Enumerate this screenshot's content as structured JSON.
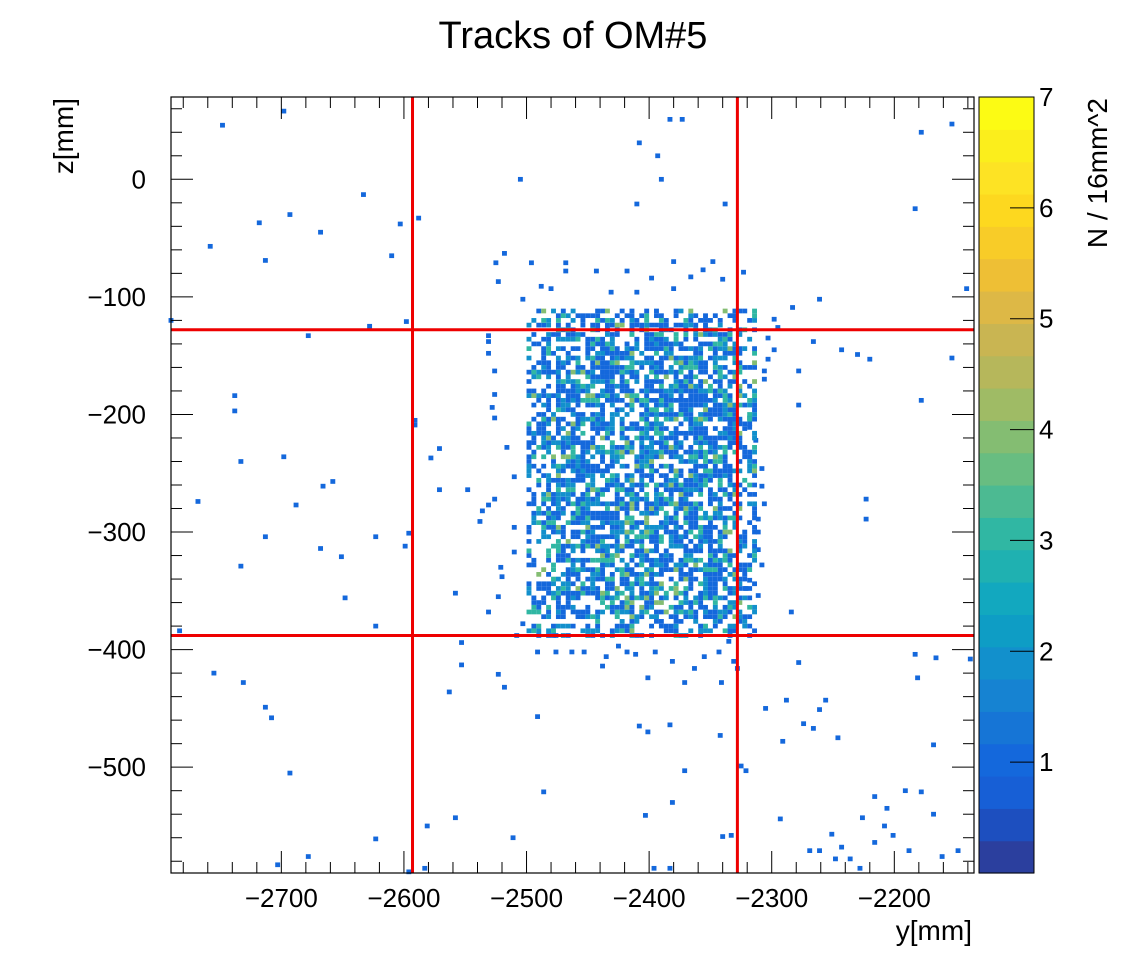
{
  "chart_data": {
    "type": "heatmap",
    "title": "Tracks of OM#5",
    "xlabel": "y[mm]",
    "ylabel": "z[mm]",
    "zlabel": "N / 16mm^2",
    "xlim": [
      -2790,
      -2135
    ],
    "ylim": [
      -590,
      70
    ],
    "zlim": [
      0,
      7
    ],
    "x_ticks": [
      -2700,
      -2600,
      -2500,
      -2400,
      -2300,
      -2200
    ],
    "x_tick_labels": [
      "−2700",
      "−2600",
      "−2500",
      "−2400",
      "−2300",
      "−2200"
    ],
    "y_ticks": [
      0,
      -100,
      -200,
      -300,
      -400,
      -500
    ],
    "y_tick_labels": [
      "0",
      "−100",
      "−200",
      "−300",
      "−400",
      "−500"
    ],
    "z_ticks": [
      1,
      2,
      3,
      4,
      5,
      6,
      7
    ],
    "z_tick_labels": [
      "1",
      "2",
      "3",
      "4",
      "5",
      "6",
      "7"
    ],
    "bin_size": 4,
    "palette": [
      "#2b3f9e",
      "#1d4fbf",
      "#175fd6",
      "#1468dc",
      "#1675d6",
      "#1683d2",
      "#1290cc",
      "#0e9dc5",
      "#12a8bf",
      "#1fb1b1",
      "#30b7a3",
      "#4cba92",
      "#68bd81",
      "#84bd72",
      "#9fbb65",
      "#b6b75b",
      "#c9b552",
      "#ddb846",
      "#eebf35",
      "#f8cc28",
      "#fdd81f",
      "#fde324",
      "#fbee1c",
      "#fcfb14"
    ],
    "reference_lines": {
      "x": [
        -2593,
        -2328
      ],
      "y": [
        -128,
        -388
      ],
      "color": "#ee0000"
    },
    "dense_region": {
      "x_range": [
        -2500,
        -2315
      ],
      "y_range": [
        -390,
        -110
      ],
      "mean_count": 1.6,
      "max_count": 4
    },
    "points": [
      [
        -2750,
        44,
        1
      ],
      [
        -2700,
        56,
        1
      ],
      [
        -2155,
        45,
        1
      ],
      [
        -2180,
        38,
        1
      ],
      [
        -2385,
        49,
        1
      ],
      [
        -2375,
        49,
        1
      ],
      [
        -2410,
        29,
        1
      ],
      [
        -2395,
        18,
        1
      ],
      [
        -2392,
        -2,
        1
      ],
      [
        -2507,
        -2,
        1
      ],
      [
        -2635,
        -15,
        1
      ],
      [
        -2185,
        -27,
        1
      ],
      [
        -2412,
        -23,
        1
      ],
      [
        -2340,
        -23,
        1
      ],
      [
        -2695,
        -32,
        1
      ],
      [
        -2590,
        -35,
        1
      ],
      [
        -2720,
        -39,
        1
      ],
      [
        -2605,
        -40,
        1
      ],
      [
        -2670,
        -47,
        1
      ],
      [
        -2760,
        -59,
        1
      ],
      [
        -2612,
        -67,
        1
      ],
      [
        -2715,
        -71,
        1
      ],
      [
        -2520,
        -65,
        1
      ],
      [
        -2527,
        -73,
        1
      ],
      [
        -2498,
        -73,
        1
      ],
      [
        -2143,
        -95,
        1
      ],
      [
        -2263,
        -104,
        1
      ],
      [
        -2285,
        -111,
        1
      ],
      [
        -2792,
        -122,
        1
      ],
      [
        -2630,
        -127,
        1
      ],
      [
        -2600,
        -123,
        1
      ],
      [
        -2680,
        -135,
        1
      ],
      [
        -2268,
        -140,
        1
      ],
      [
        -2245,
        -147,
        1
      ],
      [
        -2232,
        -151,
        1
      ],
      [
        -2222,
        -155,
        1
      ],
      [
        -2155,
        -154,
        1
      ],
      [
        -2280,
        -165,
        1
      ],
      [
        -2740,
        -186,
        1
      ],
      [
        -2740,
        -199,
        1
      ],
      [
        -2280,
        -194,
        1
      ],
      [
        -2180,
        -190,
        1
      ],
      [
        -2593,
        -207,
        1
      ],
      [
        -2593,
        -211,
        1
      ],
      [
        -2580,
        -239,
        1
      ],
      [
        -2573,
        -231,
        1
      ],
      [
        -2700,
        -238,
        1
      ],
      [
        -2735,
        -242,
        1
      ],
      [
        -2668,
        -263,
        1
      ],
      [
        -2660,
        -259,
        1
      ],
      [
        -2573,
        -266,
        1
      ],
      [
        -2550,
        -266,
        1
      ],
      [
        -2533,
        -279,
        1
      ],
      [
        -2540,
        -293,
        1
      ],
      [
        -2690,
        -279,
        1
      ],
      [
        -2770,
        -276,
        1
      ],
      [
        -2225,
        -274,
        1
      ],
      [
        -2225,
        -291,
        1
      ],
      [
        -2715,
        -306,
        1
      ],
      [
        -2625,
        -306,
        1
      ],
      [
        -2598,
        -303,
        1
      ],
      [
        -2670,
        -316,
        1
      ],
      [
        -2653,
        -323,
        1
      ],
      [
        -2601,
        -314,
        1
      ],
      [
        -2735,
        -331,
        1
      ],
      [
        -2560,
        -354,
        1
      ],
      [
        -2650,
        -358,
        1
      ],
      [
        -2625,
        -382,
        1
      ],
      [
        -2286,
        -370,
        1
      ],
      [
        -2313,
        -356,
        1
      ],
      [
        -2555,
        -396,
        1
      ],
      [
        -2785,
        -386,
        1
      ],
      [
        -2757,
        -422,
        1
      ],
      [
        -2733,
        -430,
        1
      ],
      [
        -2715,
        -451,
        1
      ],
      [
        -2710,
        -460,
        1
      ],
      [
        -2555,
        -415,
        1
      ],
      [
        -2525,
        -423,
        1
      ],
      [
        -2565,
        -438,
        1
      ],
      [
        -2520,
        -434,
        1
      ],
      [
        -2493,
        -459,
        1
      ],
      [
        -2185,
        -406,
        1
      ],
      [
        -2168,
        -409,
        1
      ],
      [
        -2140,
        -410,
        1
      ],
      [
        -2280,
        -413,
        1
      ],
      [
        -2183,
        -426,
        1
      ],
      [
        -2290,
        -445,
        1
      ],
      [
        -2258,
        -445,
        1
      ],
      [
        -2263,
        -453,
        1
      ],
      [
        -2307,
        -452,
        1
      ],
      [
        -2276,
        -465,
        1
      ],
      [
        -2268,
        -469,
        1
      ],
      [
        -2248,
        -477,
        1
      ],
      [
        -2293,
        -480,
        1
      ],
      [
        -2385,
        -466,
        1
      ],
      [
        -2410,
        -467,
        1
      ],
      [
        -2403,
        -472,
        1
      ],
      [
        -2344,
        -475,
        1
      ],
      [
        -2170,
        -483,
        1
      ],
      [
        -2695,
        -507,
        1
      ],
      [
        -2373,
        -505,
        1
      ],
      [
        -2323,
        -505,
        1
      ],
      [
        -2327,
        -501,
        1
      ],
      [
        -2488,
        -523,
        1
      ],
      [
        -2383,
        -532,
        1
      ],
      [
        -2218,
        -527,
        1
      ],
      [
        -2180,
        -523,
        1
      ],
      [
        -2170,
        -542,
        1
      ],
      [
        -2193,
        -522,
        1
      ],
      [
        -2208,
        -537,
        1
      ],
      [
        -2228,
        -545,
        1
      ],
      [
        -2405,
        -543,
        1
      ],
      [
        -2560,
        -545,
        1
      ],
      [
        -2583,
        -552,
        1
      ],
      [
        -2513,
        -562,
        1
      ],
      [
        -2625,
        -563,
        1
      ],
      [
        -2342,
        -561,
        1
      ],
      [
        -2335,
        -560,
        1
      ],
      [
        -2295,
        -546,
        1
      ],
      [
        -2253,
        -559,
        1
      ],
      [
        -2263,
        -573,
        1
      ],
      [
        -2245,
        -570,
        1
      ],
      [
        -2238,
        -580,
        1
      ],
      [
        -2250,
        -580,
        1
      ],
      [
        -2271,
        -573,
        1
      ],
      [
        -2210,
        -552,
        1
      ],
      [
        -2218,
        -566,
        1
      ],
      [
        -2203,
        -560,
        1
      ],
      [
        -2190,
        -573,
        1
      ],
      [
        -2163,
        -578,
        1
      ],
      [
        -2150,
        -573,
        1
      ],
      [
        -2680,
        -578,
        1
      ],
      [
        -2705,
        -585,
        1
      ],
      [
        -2398,
        -588,
        1
      ],
      [
        -2385,
        -588,
        1
      ],
      [
        -2230,
        -588,
        1
      ],
      [
        -2598,
        -591,
        1
      ],
      [
        -2585,
        -588,
        1
      ],
      [
        -2470,
        -73,
        1
      ],
      [
        -2470,
        -80,
        1
      ],
      [
        -2445,
        -80,
        1
      ],
      [
        -2490,
        -93,
        1
      ],
      [
        -2525,
        -89,
        1
      ],
      [
        -2505,
        -104,
        1
      ],
      [
        -2482,
        -95,
        1
      ],
      [
        -2420,
        -80,
        1
      ],
      [
        -2400,
        -86,
        1
      ],
      [
        -2382,
        -95,
        1
      ],
      [
        -2368,
        -85,
        1
      ],
      [
        -2358,
        -79,
        1
      ],
      [
        -2350,
        -72,
        1
      ],
      [
        -2342,
        -87,
        1
      ],
      [
        -2325,
        -81,
        1
      ],
      [
        -2382,
        -72,
        1
      ],
      [
        -2412,
        -98,
        1
      ],
      [
        -2433,
        -98,
        1
      ],
      [
        -2300,
        -121,
        1
      ],
      [
        -2297,
        -128,
        1
      ],
      [
        -2305,
        -137,
        1
      ],
      [
        -2300,
        -147,
        1
      ],
      [
        -2305,
        -155,
        1
      ],
      [
        -2308,
        -165,
        1
      ],
      [
        -2308,
        -172,
        1
      ],
      [
        -2320,
        -205,
        1
      ],
      [
        -2320,
        -213,
        1
      ],
      [
        -2315,
        -224,
        1
      ],
      [
        -2320,
        -238,
        1
      ],
      [
        -2310,
        -248,
        1
      ],
      [
        -2310,
        -263,
        1
      ],
      [
        -2308,
        -278,
        1
      ],
      [
        -2313,
        -291,
        1
      ],
      [
        -2313,
        -302,
        1
      ],
      [
        -2313,
        -317,
        1
      ],
      [
        -2310,
        -330,
        1
      ],
      [
        -2320,
        -343,
        1
      ],
      [
        -2323,
        -350,
        1
      ],
      [
        -2533,
        -135,
        1
      ],
      [
        -2533,
        -140,
        1
      ],
      [
        -2533,
        -150,
        1
      ],
      [
        -2528,
        -165,
        1
      ],
      [
        -2528,
        -185,
        1
      ],
      [
        -2530,
        -196,
        1
      ],
      [
        -2528,
        -205,
        1
      ],
      [
        -2518,
        -230,
        1
      ],
      [
        -2512,
        -255,
        1
      ],
      [
        -2528,
        -274,
        1
      ],
      [
        -2538,
        -284,
        1
      ],
      [
        -2512,
        -298,
        1
      ],
      [
        -2512,
        -319,
        1
      ],
      [
        -2523,
        -332,
        1
      ],
      [
        -2522,
        -340,
        1
      ],
      [
        -2525,
        -357,
        1
      ],
      [
        -2533,
        -370,
        1
      ],
      [
        -2510,
        -390,
        1
      ],
      [
        -2505,
        -380,
        1
      ],
      [
        -2493,
        -404,
        1
      ],
      [
        -2478,
        -404,
        1
      ],
      [
        -2465,
        -404,
        1
      ],
      [
        -2455,
        -404,
        1
      ],
      [
        -2437,
        -408,
        1
      ],
      [
        -2413,
        -406,
        1
      ],
      [
        -2397,
        -404,
        1
      ],
      [
        -2383,
        -412,
        1
      ],
      [
        -2365,
        -418,
        1
      ],
      [
        -2357,
        -408,
        1
      ],
      [
        -2345,
        -404,
        1
      ],
      [
        -2337,
        -395,
        1
      ],
      [
        -2333,
        -412,
        1
      ],
      [
        -2373,
        -430,
        1
      ],
      [
        -2403,
        -426,
        1
      ],
      [
        -2440,
        -416,
        1
      ],
      [
        -2330,
        -418,
        1
      ],
      [
        -2343,
        -430,
        1
      ],
      [
        -2420,
        -404,
        1
      ],
      [
        -2427,
        -399,
        1
      ],
      [
        -2478,
        -390,
        1
      ]
    ]
  }
}
